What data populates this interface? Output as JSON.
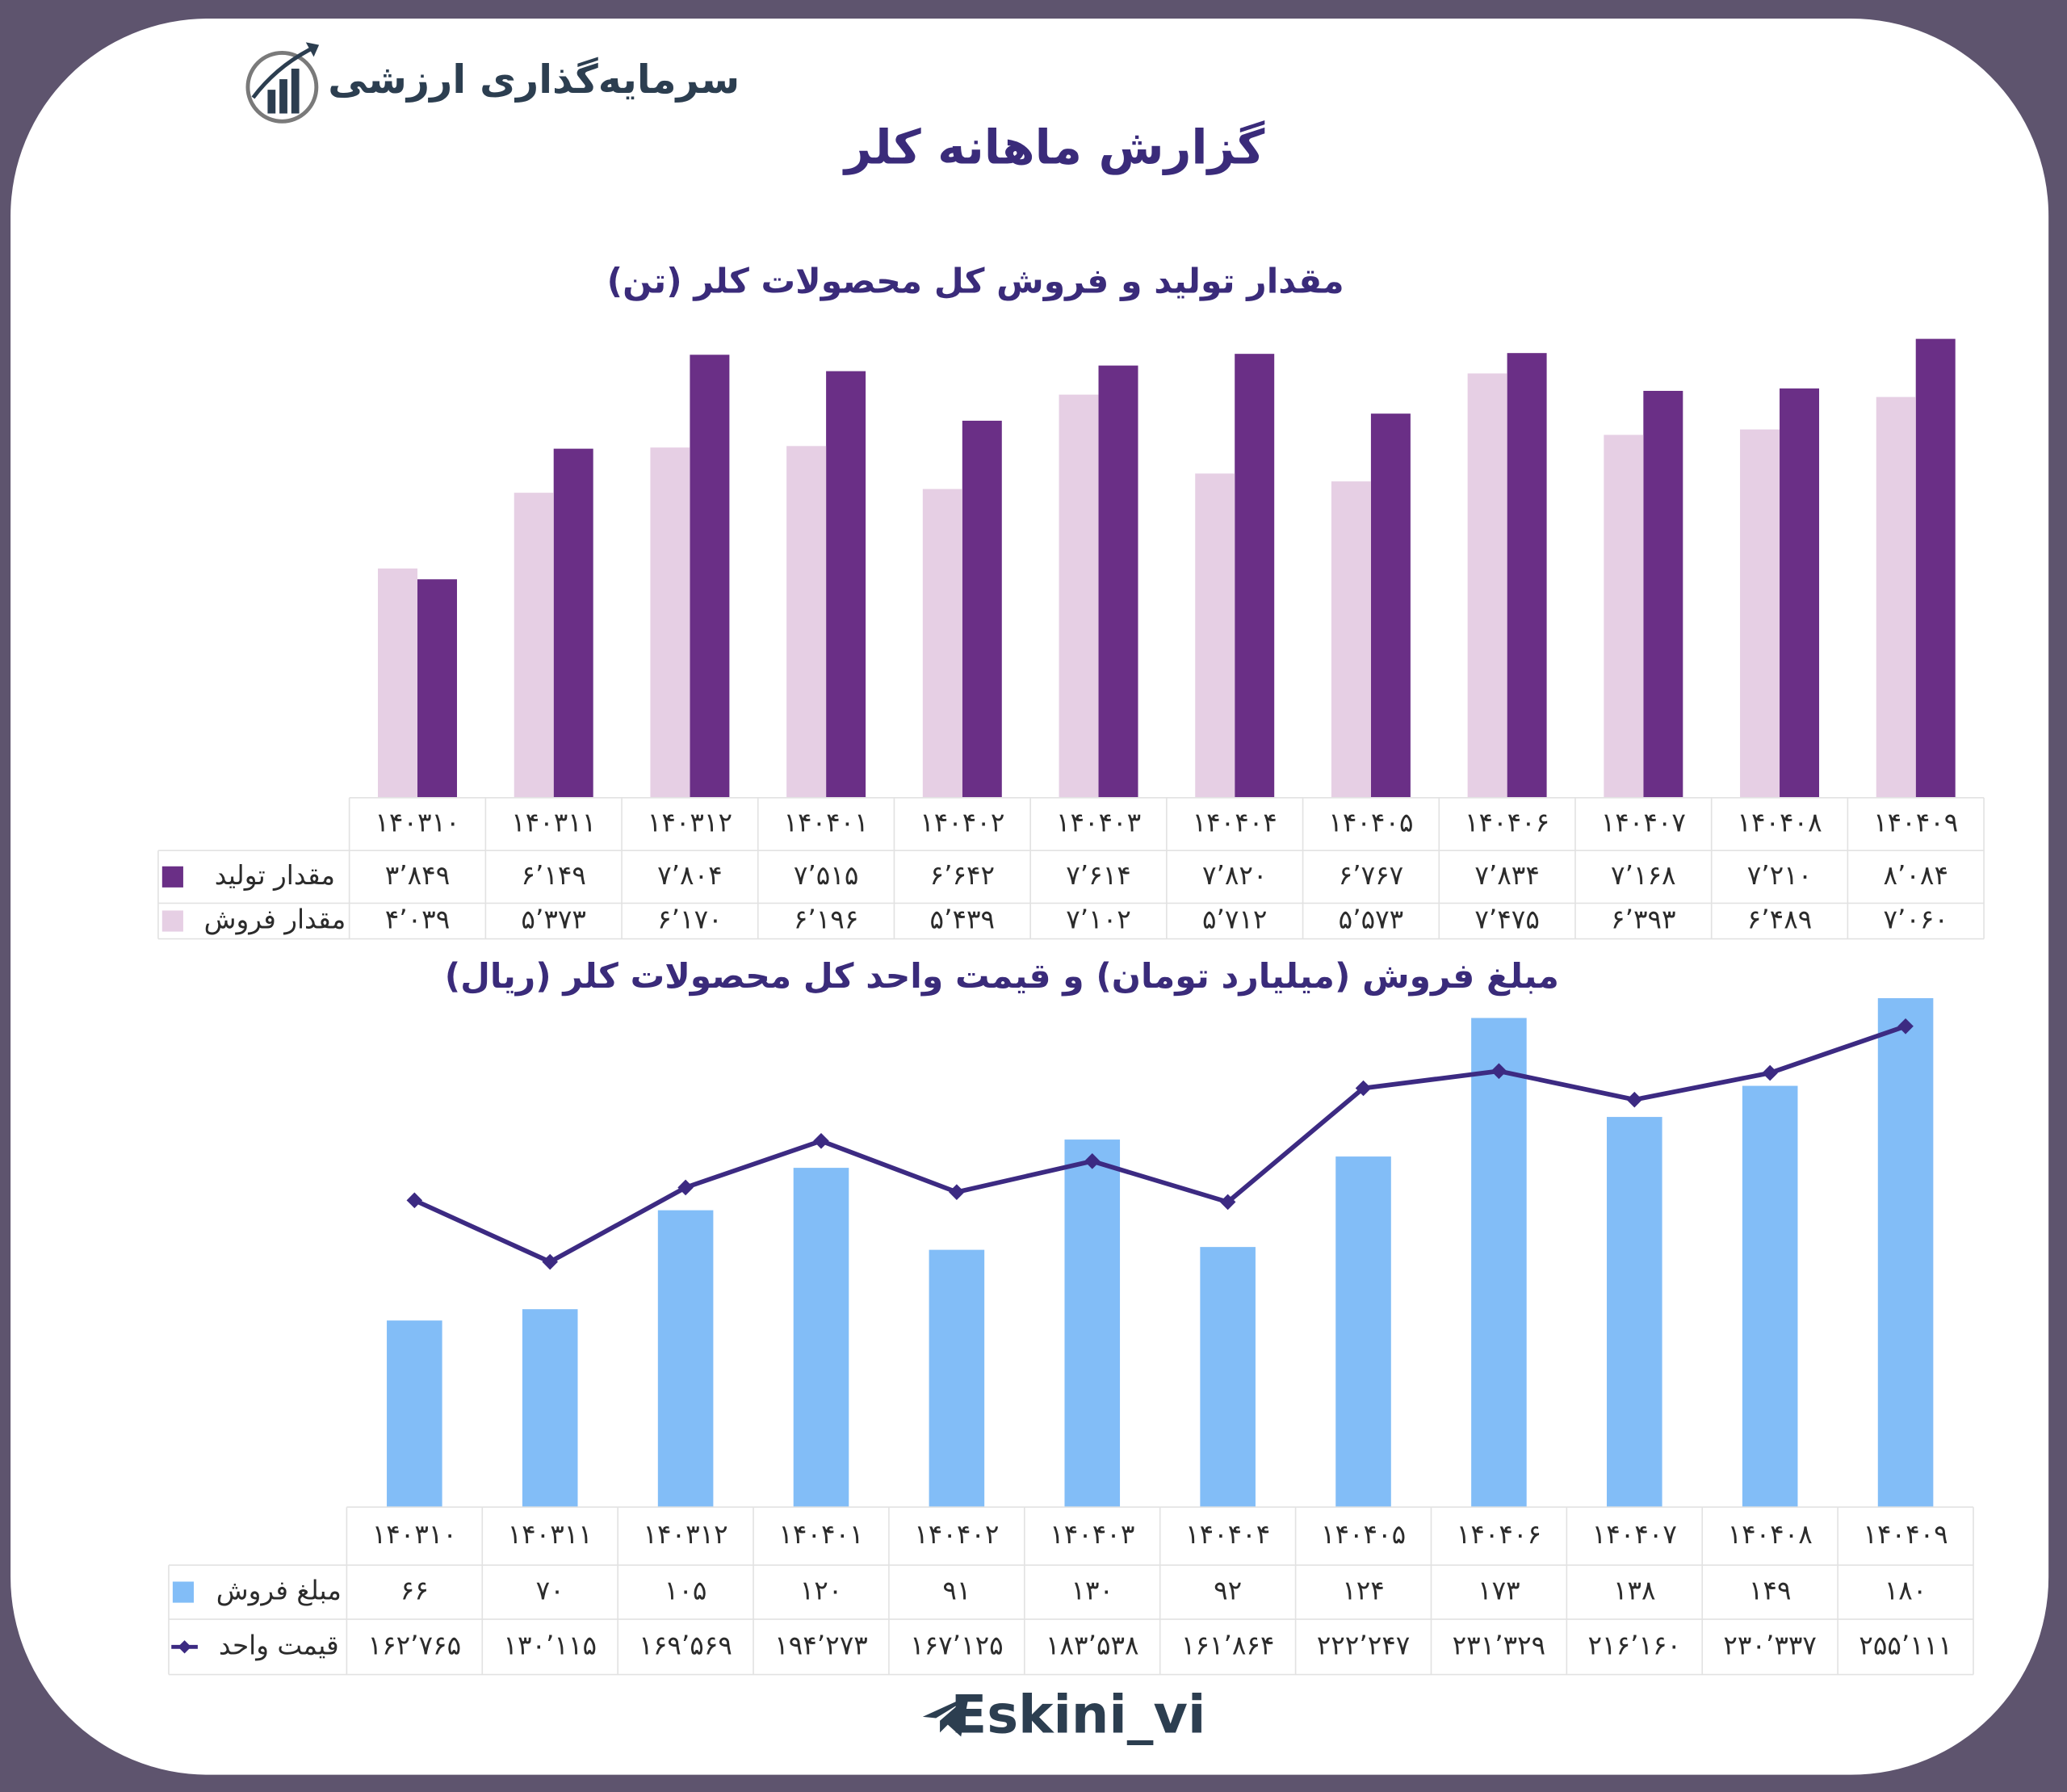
{
  "header": {
    "brand": "سرمایه‌گذاری ارزشی",
    "title": "گزارش ماهانه کلر"
  },
  "chart_data": [
    {
      "type": "bar",
      "title": "مقدار تولید و فروش کل محصولات کلر (تن)",
      "categories": [
        "۱۴۰۳۱۰",
        "۱۴۰۳۱۱",
        "۱۴۰۳۱۲",
        "۱۴۰۴۰۱",
        "۱۴۰۴۰۲",
        "۱۴۰۴۰۳",
        "۱۴۰۴۰۴",
        "۱۴۰۴۰۵",
        "۱۴۰۴۰۶",
        "۱۴۰۴۰۷",
        "۱۴۰۴۰۸",
        "۱۴۰۴۰۹"
      ],
      "ylim": [
        0,
        9000
      ],
      "series": [
        {
          "name": "مقدار تولید",
          "color": "#6a2f86",
          "values": [
            3849,
            6149,
            7804,
            7515,
            6642,
            7614,
            7820,
            6767,
            7834,
            7168,
            7210,
            8084
          ],
          "value_labels": [
            "۳٬۸۴۹",
            "۶٬۱۴۹",
            "۷٬۸۰۴",
            "۷٬۵۱۵",
            "۶٬۶۴۲",
            "۷٬۶۱۴",
            "۷٬۸۲۰",
            "۶٬۷۶۷",
            "۷٬۸۳۴",
            "۷٬۱۶۸",
            "۷٬۲۱۰",
            "۸٬۰۸۴"
          ]
        },
        {
          "name": "مقدار فروش",
          "color": "#e6cfe4",
          "values": [
            4039,
            5373,
            6170,
            6196,
            5439,
            7102,
            5712,
            5573,
            7475,
            6393,
            6489,
            7060
          ],
          "value_labels": [
            "۴٬۰۳۹",
            "۵٬۳۷۳",
            "۶٬۱۷۰",
            "۶٬۱۹۶",
            "۵٬۴۳۹",
            "۷٬۱۰۲",
            "۵٬۷۱۲",
            "۵٬۵۷۳",
            "۷٬۴۷۵",
            "۶٬۳۹۳",
            "۶٬۴۸۹",
            "۷٬۰۶۰"
          ]
        }
      ]
    },
    {
      "type": "bar",
      "title": "مبلغ فروش (میلیارد تومان) و قیمت واحد کل محصولات کلر (ریال)",
      "categories": [
        "۱۴۰۳۱۰",
        "۱۴۰۳۱۱",
        "۱۴۰۳۱۲",
        "۱۴۰۴۰۱",
        "۱۴۰۴۰۲",
        "۱۴۰۴۰۳",
        "۱۴۰۴۰۴",
        "۱۴۰۴۰۵",
        "۱۴۰۴۰۶",
        "۱۴۰۴۰۷",
        "۱۴۰۴۰۸",
        "۱۴۰۴۰۹"
      ],
      "ylim": [
        0,
        180
      ],
      "y2lim": [
        0,
        270000
      ],
      "series": [
        {
          "name": "مبلغ فروش",
          "color": "#82bdf7",
          "type": "bar",
          "values": [
            66,
            70,
            105,
            120,
            91,
            130,
            92,
            124,
            173,
            138,
            149,
            180
          ],
          "value_labels": [
            "۶۶",
            "۷۰",
            "۱۰۵",
            "۱۲۰",
            "۹۱",
            "۱۳۰",
            "۹۲",
            "۱۲۴",
            "۱۷۳",
            "۱۳۸",
            "۱۴۹",
            "۱۸۰"
          ]
        },
        {
          "name": "قیمت واحد",
          "color": "#3c2a82",
          "type": "line",
          "axis": "y2",
          "values": [
            162765,
            130115,
            169569,
            194273,
            167125,
            183538,
            161864,
            222247,
            231329,
            216160,
            230337,
            255111
          ],
          "value_labels": [
            "۱۶۲٬۷۶۵",
            "۱۳۰٬۱۱۵",
            "۱۶۹٬۵۶۹",
            "۱۹۴٬۲۷۳",
            "۱۶۷٬۱۲۵",
            "۱۸۳٬۵۳۸",
            "۱۶۱٬۸۶۴",
            "۲۲۲٬۲۴۷",
            "۲۳۱٬۳۲۹",
            "۲۱۶٬۱۶۰",
            "۲۳۰٬۳۳۷",
            "۲۵۵٬۱۱۱"
          ]
        }
      ]
    }
  ],
  "footer": {
    "handle": "Eskini_vi"
  }
}
